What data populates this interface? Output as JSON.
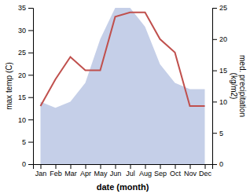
{
  "chart_data": {
    "type": "line",
    "categories": [
      "Jan",
      "Feb",
      "Mar",
      "Apr",
      "May",
      "Jun",
      "Jul",
      "Aug",
      "Sep",
      "Oct",
      "Nov",
      "Dec"
    ],
    "series": [
      {
        "type": "area",
        "axis": "y2",
        "color": "#c5cfe8",
        "values": [
          10,
          9,
          10,
          13,
          20,
          25,
          25,
          22,
          16,
          13,
          12,
          12
        ]
      },
      {
        "type": "line",
        "color": "#c0504d",
        "values": [
          13,
          19,
          24,
          21,
          21,
          33,
          34,
          34,
          28,
          25,
          13,
          13
        ]
      }
    ],
    "xlabel": "date (month)",
    "ylabel": "max temp (C)",
    "y2label": "med. precipitation\n(kg/m2)",
    "ylim": [
      0,
      35
    ],
    "yticks": [
      0,
      5,
      10,
      15,
      20,
      25,
      30,
      35
    ],
    "y2lim": [
      0,
      25
    ],
    "y2ticks": [
      0,
      5,
      10,
      15,
      20,
      25
    ],
    "grid": false
  }
}
